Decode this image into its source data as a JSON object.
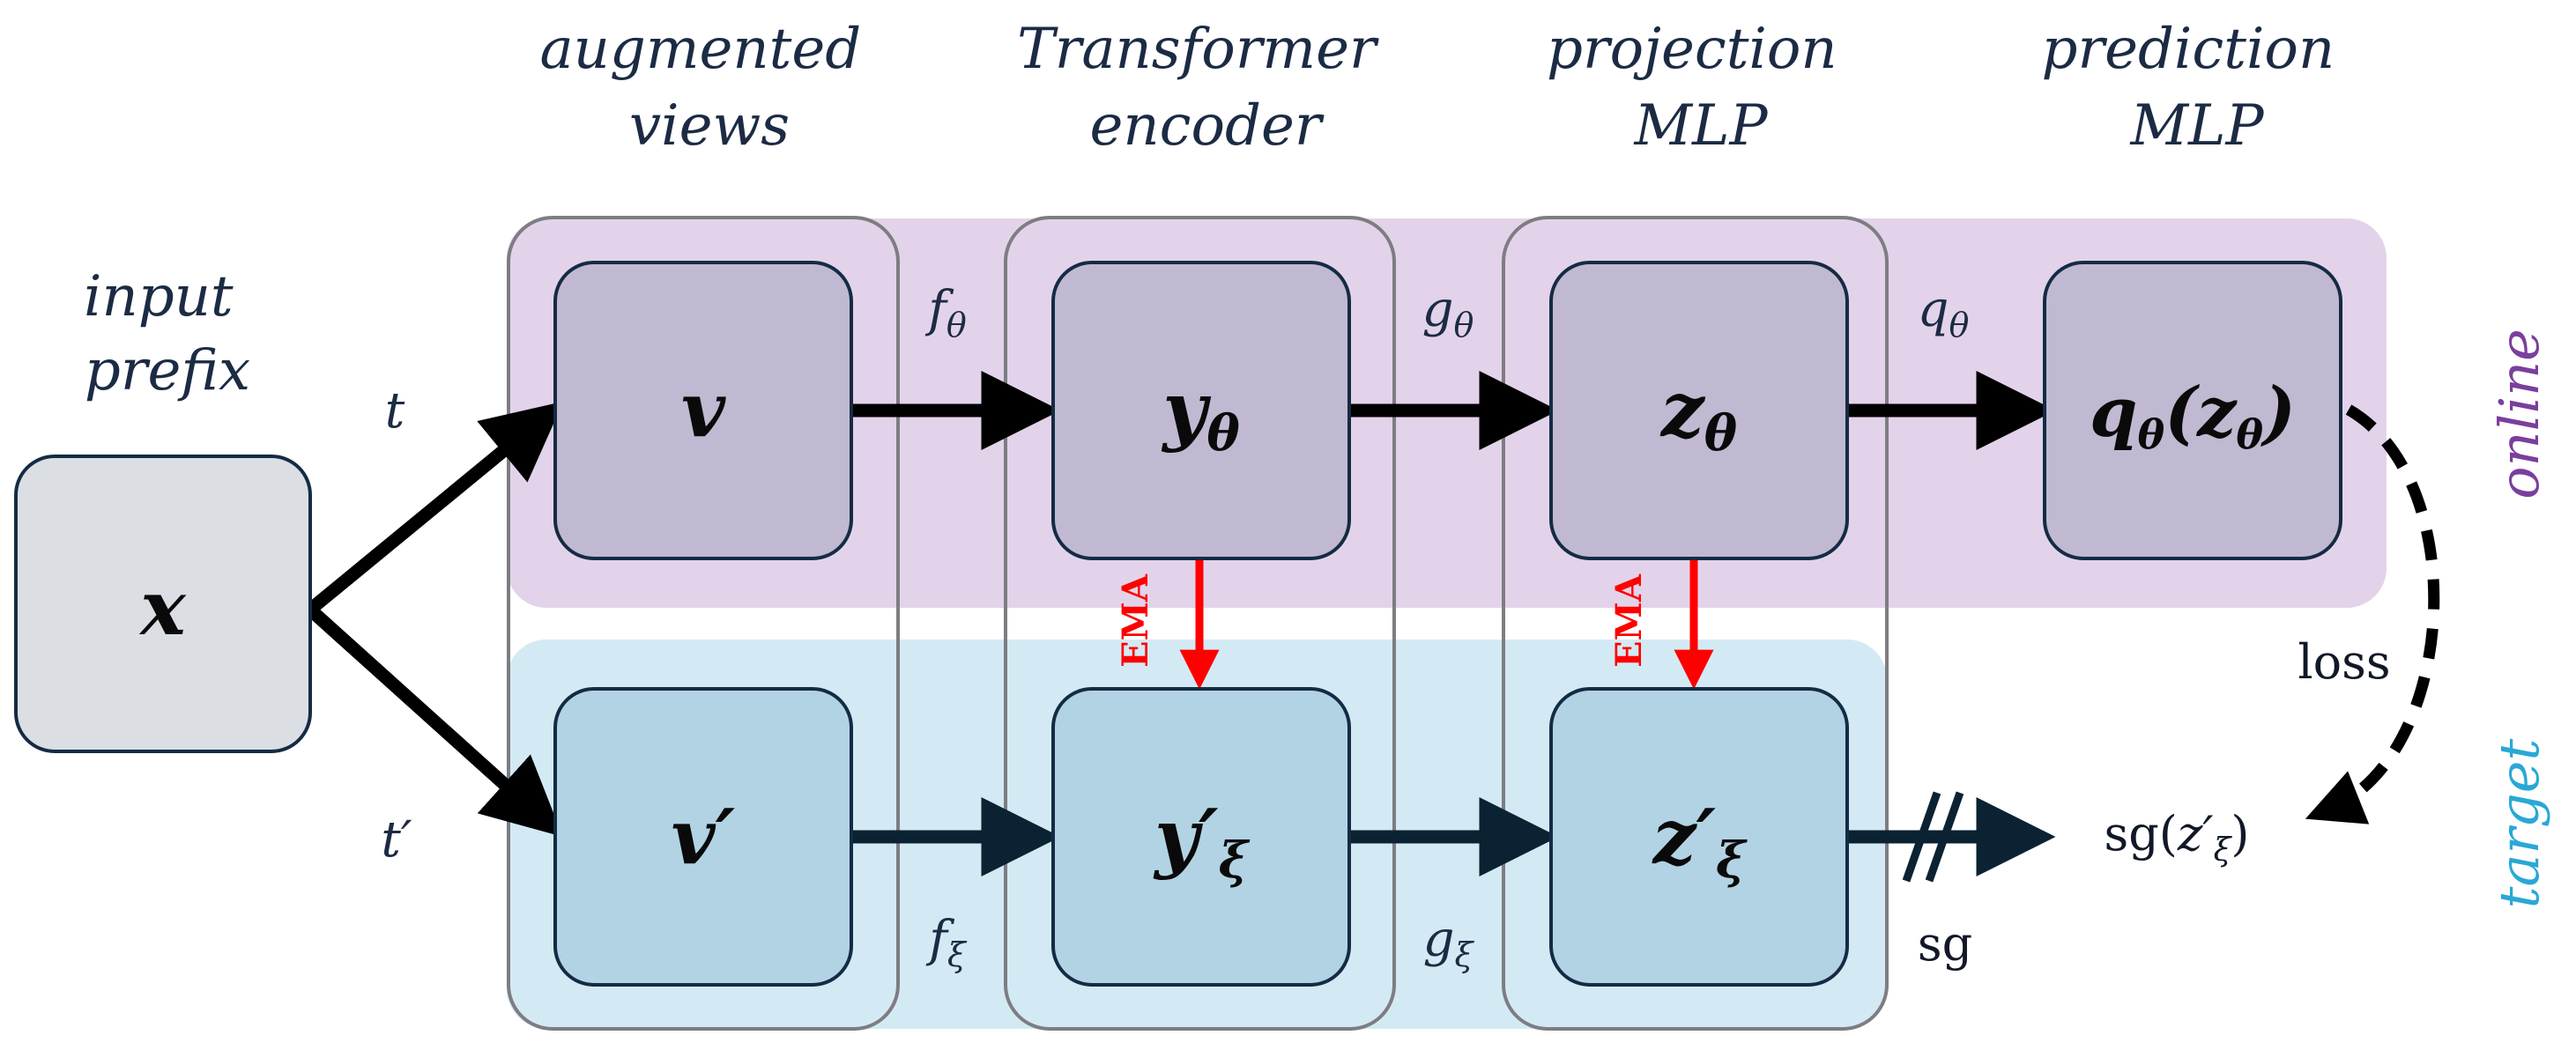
{
  "colors": {
    "online_band": "#e3d3ea",
    "target_band": "#d3eaf4",
    "online_node": "#c1b9d1",
    "target_node": "#b2d3e3",
    "input_node": "#dbdee3",
    "node_border": "#142b44",
    "column_border": "#7d7d82",
    "arrow": "#000000",
    "target_arrow": "#0b2233",
    "ema_arrow": "#ff0000",
    "online_text": "#7a3f9d",
    "target_text": "#29a8d6"
  },
  "headers": {
    "input": [
      "input",
      "prefix"
    ],
    "views": [
      "augmented",
      "views"
    ],
    "encoder": [
      "Transformer",
      "encoder"
    ],
    "projection": [
      "projection",
      "MLP"
    ],
    "prediction": [
      "prediction",
      "MLP"
    ]
  },
  "nodes": {
    "x": "x",
    "v": "v",
    "v_prime": "v′",
    "y_theta": {
      "base": "y",
      "sub": "θ"
    },
    "y_xi": {
      "base": "y′",
      "sub": "ξ"
    },
    "z_theta": {
      "base": "z",
      "sub": "θ"
    },
    "z_xi": {
      "base": "z′",
      "sub": "ξ"
    },
    "q_theta": {
      "q": "q",
      "sub": "θ",
      "open": "(",
      "z": "z",
      "close": ")"
    }
  },
  "edges": {
    "t": "t",
    "t_prime": "t′",
    "f_theta": {
      "base": "f",
      "sub": "θ"
    },
    "g_theta": {
      "base": "g",
      "sub": "θ"
    },
    "q_theta": {
      "base": "q",
      "sub": "θ"
    },
    "f_xi": {
      "base": "f",
      "sub": "ξ"
    },
    "g_xi": {
      "base": "g",
      "sub": "ξ"
    },
    "ema": "EMA",
    "sg": "sg",
    "loss": "loss",
    "sg_output": {
      "pre": "sg(",
      "z": "z′",
      "sub": "ξ",
      "post": ")"
    }
  },
  "side_labels": {
    "online": "online",
    "target": "target"
  }
}
